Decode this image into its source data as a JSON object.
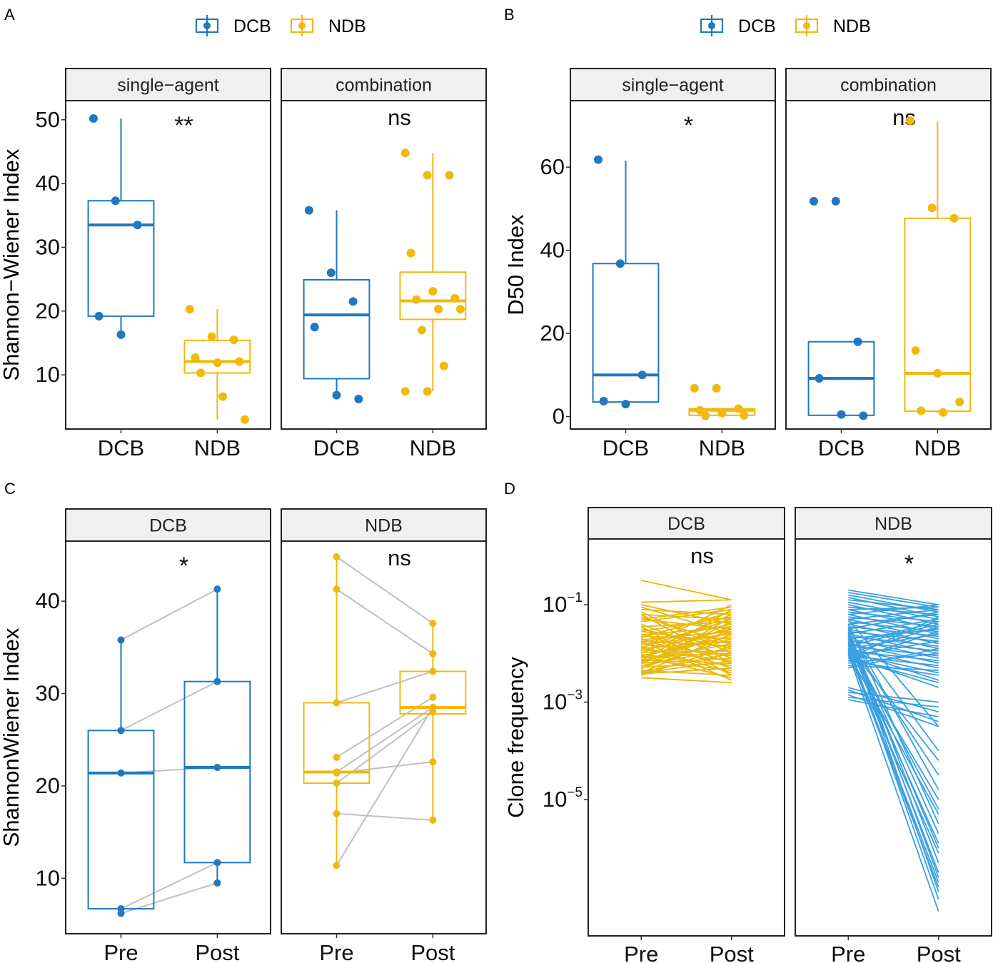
{
  "colors": {
    "dcb": "#1f78c1",
    "ndb": "#f0b90b",
    "ndb_line": "#e8b80c",
    "dcb_line": "#3aa0e0",
    "pair_line": "#c0c0c0",
    "strip_bg": "#f0f0f0"
  },
  "legend": {
    "items": [
      {
        "label": "DCB",
        "color": "#1f78c1"
      },
      {
        "label": "NDB",
        "color": "#f0b90b"
      }
    ]
  },
  "chart_data": [
    {
      "panel": "A",
      "type": "boxplot",
      "ylabel": "Shannon−Wiener Index",
      "ylim": [
        1.5,
        53
      ],
      "yticks": [
        10,
        20,
        30,
        40,
        50
      ],
      "facets": [
        {
          "strip": "single−agent",
          "sig": "**",
          "categories": [
            "DCB",
            "NDB"
          ],
          "boxes": [
            {
              "group": "DCB",
              "q1": 19.2,
              "median": 33.5,
              "q3": 37.3,
              "whisker_low": 16.3,
              "whisker_high": 50.2,
              "points": [
                50.2,
                37.3,
                33.5,
                19.2,
                16.3
              ]
            },
            {
              "group": "NDB",
              "q1": 10.3,
              "median": 12.1,
              "q3": 15.4,
              "whisker_low": 3.0,
              "whisker_high": 20.3,
              "points": [
                20.3,
                16.0,
                15.5,
                12.7,
                11.9,
                12.1,
                10.3,
                6.6,
                3.0
              ]
            }
          ]
        },
        {
          "strip": "combination",
          "sig": "ns",
          "categories": [
            "DCB",
            "NDB"
          ],
          "boxes": [
            {
              "group": "DCB",
              "q1": 9.4,
              "median": 19.4,
              "q3": 24.9,
              "whisker_low": 6.3,
              "whisker_high": 35.8,
              "points": [
                35.8,
                26.0,
                21.5,
                17.5,
                6.8,
                6.2
              ]
            },
            {
              "group": "NDB",
              "q1": 18.7,
              "median": 21.6,
              "q3": 26.1,
              "whisker_low": 7.4,
              "whisker_high": 44.8,
              "points": [
                44.8,
                41.3,
                41.3,
                29.1,
                23.1,
                22.0,
                21.8,
                20.3,
                20.3,
                17.0,
                11.4,
                7.4,
                7.4
              ]
            }
          ]
        }
      ]
    },
    {
      "panel": "B",
      "type": "boxplot",
      "ylabel": "D50 Index",
      "ylim": [
        -3,
        76
      ],
      "yticks": [
        0,
        20,
        40,
        60
      ],
      "facets": [
        {
          "strip": "single−agent",
          "sig": "*",
          "categories": [
            "DCB",
            "NDB"
          ],
          "boxes": [
            {
              "group": "DCB",
              "q1": 3.5,
              "median": 10.0,
              "q3": 36.8,
              "whisker_low": 3.0,
              "whisker_high": 61.5,
              "points": [
                61.8,
                36.8,
                10.0,
                3.7,
                3.0
              ]
            },
            {
              "group": "NDB",
              "q1": 0.3,
              "median": 1.5,
              "q3": 1.9,
              "whisker_low": 0.0,
              "whisker_high": 2.0,
              "points": [
                6.8,
                6.8,
                1.9,
                1.5,
                0.8,
                0.3,
                0.2
              ]
            }
          ]
        },
        {
          "strip": "combination",
          "sig": "ns",
          "categories": [
            "DCB",
            "NDB"
          ],
          "boxes": [
            {
              "group": "DCB",
              "q1": 0.3,
              "median": 9.2,
              "q3": 18.0,
              "whisker_low": 0.0,
              "whisker_high": 18.0,
              "points": [
                51.8,
                51.8,
                18.0,
                9.2,
                0.5,
                0.2
              ]
            },
            {
              "group": "NDB",
              "q1": 1.3,
              "median": 10.4,
              "q3": 47.7,
              "whisker_low": 0.8,
              "whisker_high": 71.0,
              "points": [
                71.2,
                50.2,
                47.7,
                15.9,
                10.4,
                3.5,
                1.4,
                1.0
              ]
            }
          ]
        }
      ]
    },
    {
      "panel": "C",
      "type": "paired-boxplot",
      "ylabel": "ShannonWiener Index",
      "ylim": [
        4,
        46.5
      ],
      "yticks": [
        10,
        20,
        30,
        40
      ],
      "facets": [
        {
          "strip": "DCB",
          "sig": "*",
          "categories": [
            "Pre",
            "Post"
          ],
          "color_key": "dcb",
          "boxes": [
            {
              "group": "Pre",
              "q1": 6.7,
              "median": 21.4,
              "q3": 26.0,
              "whisker_low": 6.2,
              "whisker_high": 35.8
            },
            {
              "group": "Post",
              "q1": 11.7,
              "median": 22.0,
              "q3": 31.3,
              "whisker_low": 9.5,
              "whisker_high": 41.3
            }
          ],
          "pairs": [
            {
              "pre": 35.8,
              "post": 41.3
            },
            {
              "pre": 26.0,
              "post": 31.3
            },
            {
              "pre": 21.4,
              "post": 22.0
            },
            {
              "pre": 6.7,
              "post": 11.7
            },
            {
              "pre": 6.2,
              "post": 9.5
            }
          ]
        },
        {
          "strip": "NDB",
          "sig": "ns",
          "categories": [
            "Pre",
            "Post"
          ],
          "color_key": "ndb",
          "boxes": [
            {
              "group": "Pre",
              "q1": 20.3,
              "median": 21.5,
              "q3": 29.0,
              "whisker_low": 11.4,
              "whisker_high": 44.8
            },
            {
              "group": "Post",
              "q1": 27.8,
              "median": 28.5,
              "q3": 32.4,
              "whisker_low": 16.3,
              "whisker_high": 37.6
            }
          ],
          "pairs": [
            {
              "pre": 44.8,
              "post": 37.6
            },
            {
              "pre": 41.3,
              "post": 34.3
            },
            {
              "pre": 29.0,
              "post": 32.4
            },
            {
              "pre": 23.1,
              "post": 29.6
            },
            {
              "pre": 21.5,
              "post": 28.5
            },
            {
              "pre": 20.3,
              "post": 28.0
            },
            {
              "pre": 17.0,
              "post": 16.3
            },
            {
              "pre": 21.4,
              "post": 22.6
            },
            {
              "pre": 11.4,
              "post": 28.5
            }
          ]
        }
      ]
    },
    {
      "panel": "D",
      "type": "line",
      "ylabel": "Clone frequency",
      "yscale": "log10",
      "ylim_log10": [
        -7.8,
        0.35
      ],
      "yticks_log10": [
        -1,
        -3,
        -5
      ],
      "facets": [
        {
          "strip": "DCB",
          "sig": "ns",
          "categories": [
            "Pre",
            "Post"
          ],
          "color_key": "ndb_line",
          "pairs_log10": [
            [
              -0.5,
              -0.9
            ],
            [
              -0.95,
              -0.9
            ],
            [
              -1.0,
              -1.4
            ],
            [
              -1.05,
              -1.6
            ],
            [
              -1.1,
              -1.2
            ],
            [
              -1.15,
              -2.0
            ],
            [
              -1.2,
              -1.3
            ],
            [
              -1.25,
              -1.8
            ],
            [
              -1.3,
              -1.5
            ],
            [
              -1.35,
              -1.1
            ],
            [
              -1.4,
              -2.1
            ],
            [
              -1.45,
              -1.35
            ],
            [
              -1.5,
              -1.9
            ],
            [
              -1.55,
              -1.25
            ],
            [
              -1.6,
              -2.2
            ],
            [
              -1.62,
              -1.45
            ],
            [
              -1.65,
              -1.7
            ],
            [
              -1.68,
              -1.15
            ],
            [
              -1.7,
              -2.3
            ],
            [
              -1.72,
              -1.55
            ],
            [
              -1.75,
              -1.85
            ],
            [
              -1.78,
              -1.4
            ],
            [
              -1.8,
              -2.05
            ],
            [
              -1.82,
              -1.6
            ],
            [
              -1.85,
              -2.4
            ],
            [
              -1.88,
              -1.3
            ],
            [
              -1.9,
              -1.75
            ],
            [
              -1.92,
              -2.15
            ],
            [
              -1.95,
              -1.5
            ],
            [
              -1.98,
              -1.95
            ],
            [
              -2.0,
              -1.2
            ],
            [
              -2.02,
              -2.25
            ],
            [
              -2.05,
              -1.65
            ],
            [
              -2.08,
              -2.0
            ],
            [
              -2.1,
              -1.45
            ],
            [
              -2.12,
              -2.35
            ],
            [
              -2.15,
              -1.8
            ],
            [
              -2.18,
              -1.55
            ],
            [
              -2.2,
              -2.1
            ],
            [
              -2.22,
              -1.35
            ],
            [
              -2.25,
              -1.9
            ],
            [
              -2.28,
              -2.2
            ],
            [
              -2.3,
              -1.7
            ],
            [
              -2.32,
              -1.25
            ],
            [
              -2.35,
              -2.45
            ],
            [
              -2.38,
              -2.0
            ],
            [
              -2.4,
              -1.6
            ],
            [
              -2.42,
              -2.3
            ],
            [
              -2.45,
              -1.85
            ],
            [
              -2.5,
              -2.6
            ],
            [
              -1.3,
              -1.05
            ],
            [
              -1.55,
              -1.8
            ],
            [
              -1.75,
              -2.55
            ],
            [
              -1.9,
              -1.0
            ],
            [
              -2.05,
              -2.5
            ],
            [
              -2.15,
              -1.1
            ],
            [
              -1.45,
              -2.45
            ],
            [
              -2.3,
              -1.5
            ],
            [
              -1.2,
              -2.2
            ],
            [
              -2.4,
              -2.15
            ]
          ]
        },
        {
          "strip": "NDB",
          "sig": "*",
          "categories": [
            "Pre",
            "Post"
          ],
          "color_key": "dcb_line",
          "pairs_log10": [
            [
              -0.7,
              -1.0
            ],
            [
              -0.75,
              -1.05
            ],
            [
              -0.8,
              -1.15
            ],
            [
              -0.85,
              -1.25
            ],
            [
              -0.9,
              -1.1
            ],
            [
              -0.95,
              -1.3
            ],
            [
              -1.0,
              -1.4
            ],
            [
              -1.05,
              -1.2
            ],
            [
              -1.1,
              -1.5
            ],
            [
              -1.15,
              -1.35
            ],
            [
              -1.2,
              -1.6
            ],
            [
              -1.25,
              -1.45
            ],
            [
              -1.3,
              -1.7
            ],
            [
              -1.35,
              -1.55
            ],
            [
              -1.4,
              -1.8
            ],
            [
              -1.45,
              -1.65
            ],
            [
              -1.5,
              -1.9
            ],
            [
              -1.55,
              -1.75
            ],
            [
              -1.6,
              -2.0
            ],
            [
              -1.65,
              -1.85
            ],
            [
              -1.7,
              -2.1
            ],
            [
              -1.75,
              -1.95
            ],
            [
              -1.8,
              -2.2
            ],
            [
              -1.85,
              -2.05
            ],
            [
              -1.9,
              -2.3
            ],
            [
              -1.95,
              -2.15
            ],
            [
              -2.0,
              -2.4
            ],
            [
              -2.05,
              -2.25
            ],
            [
              -1.6,
              -1.3
            ],
            [
              -1.7,
              -1.5
            ],
            [
              -1.8,
              -1.35
            ],
            [
              -1.9,
              -1.6
            ],
            [
              -2.0,
              -1.45
            ],
            [
              -2.1,
              -1.25
            ],
            [
              -1.5,
              -1.15
            ],
            [
              -1.4,
              -1.2
            ],
            [
              -1.3,
              -1.1
            ],
            [
              -1.2,
              -1.0
            ],
            [
              -1.1,
              -1.05
            ],
            [
              -2.05,
              -1.75
            ],
            [
              -2.1,
              -2.6
            ],
            [
              -2.15,
              -2.45
            ],
            [
              -1.95,
              -2.55
            ],
            [
              -2.7,
              -3.2
            ],
            [
              -2.75,
              -3.4
            ],
            [
              -2.8,
              -3.0
            ],
            [
              -2.85,
              -3.5
            ],
            [
              -2.9,
              -3.1
            ],
            [
              -2.95,
              -3.3
            ],
            [
              -1.3,
              -3.5
            ],
            [
              -1.5,
              -4.0
            ],
            [
              -1.7,
              -4.5
            ],
            [
              -1.9,
              -5.0
            ],
            [
              -2.0,
              -5.3
            ],
            [
              -1.4,
              -5.5
            ],
            [
              -1.6,
              -5.7
            ],
            [
              -1.8,
              -5.9
            ],
            [
              -2.0,
              -6.1
            ],
            [
              -1.5,
              -6.3
            ],
            [
              -1.7,
              -6.5
            ],
            [
              -1.9,
              -6.7
            ],
            [
              -1.6,
              -6.9
            ],
            [
              -1.8,
              -7.05
            ],
            [
              -2.0,
              -7.3
            ],
            [
              -1.45,
              -4.8
            ],
            [
              -1.65,
              -6.0
            ],
            [
              -1.75,
              -5.2
            ],
            [
              -1.55,
              -6.6
            ],
            [
              -1.85,
              -4.2
            ],
            [
              -1.95,
              -6.8
            ],
            [
              -2.05,
              -2.7
            ],
            [
              -2.2,
              -2.0
            ],
            [
              -2.3,
              -1.9
            ],
            [
              -2.25,
              -2.35
            ],
            [
              -2.15,
              -1.55
            ],
            [
              -1.85,
              -1.4
            ]
          ]
        }
      ]
    }
  ],
  "panels": [
    {
      "letter": "A",
      "legend": true,
      "xlabels": [
        [
          "DCB",
          "NDB"
        ],
        [
          "DCB",
          "NDB"
        ]
      ],
      "ylabel": "Shannon−Wiener Index",
      "strips": [
        "single−agent",
        "combination"
      ]
    },
    {
      "letter": "B",
      "legend": true,
      "xlabels": [
        [
          "DCB",
          "NDB"
        ],
        [
          "DCB",
          "NDB"
        ]
      ],
      "ylabel": "D50 Index",
      "strips": [
        "single−agent",
        "combination"
      ]
    },
    {
      "letter": "C",
      "legend": false,
      "xlabels": [
        [
          "Pre",
          "Post"
        ],
        [
          "Pre",
          "Post"
        ]
      ],
      "ylabel": "ShannonWiener Index",
      "strips": [
        "DCB",
        "NDB"
      ]
    },
    {
      "letter": "D",
      "legend": false,
      "xlabels": [
        [
          "Pre",
          "Post"
        ],
        [
          "Pre",
          "Post"
        ]
      ],
      "ylabel": "Clone frequency",
      "strips": [
        "DCB",
        "NDB"
      ]
    }
  ]
}
